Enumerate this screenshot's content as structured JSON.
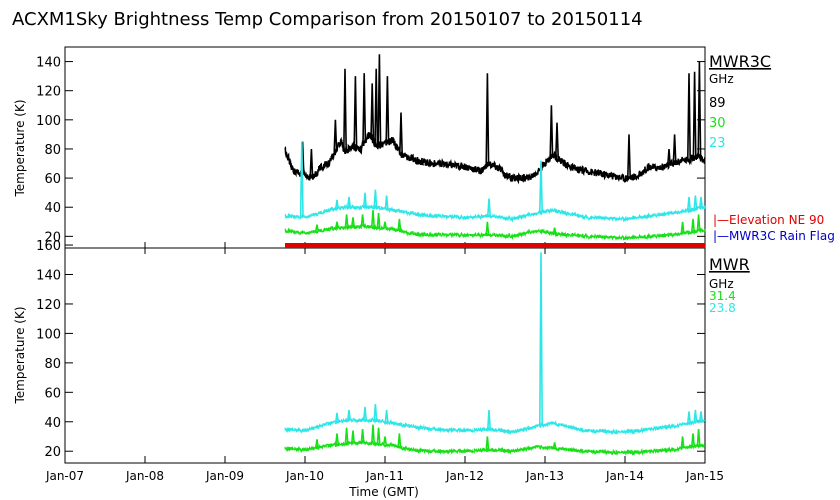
{
  "chart_data": {
    "type": "line",
    "title": "ACXM1Sky Brightness Temp Comparison from 20150107 to 20150114",
    "xlabel": "Time (GMT)",
    "x_ticks": [
      "Jan-07",
      "Jan-08",
      "Jan-09",
      "Jan-10",
      "Jan-11",
      "Jan-12",
      "Jan-13",
      "Jan-14",
      "Jan-15"
    ],
    "x_range_days": [
      0,
      8
    ],
    "colors": {
      "black": "#000000",
      "cyan": "#2ee6e6",
      "green": "#18e018",
      "red": "#e00000",
      "blue": "#0000c8"
    },
    "panels": [
      {
        "instrument": "MWR3C",
        "ylabel": "Temperature (K)",
        "ylim": [
          12,
          150
        ],
        "yticks": [
          "20",
          "40",
          "60",
          "80",
          "100",
          "120",
          "140"
        ],
        "legend_unit": "GHz",
        "legend_freqs": [
          "89",
          "30",
          "23"
        ],
        "flags": [
          "|—Elevation NE 90",
          "|—MWR3C Rain Flag"
        ],
        "series": [
          {
            "name": "89 GHz",
            "color": "black",
            "points": [
              [
                2.75,
                80
              ],
              [
                2.85,
                65
              ],
              [
                3.0,
                62
              ],
              [
                3.1,
                60
              ],
              [
                3.2,
                68
              ],
              [
                3.3,
                70
              ],
              [
                3.4,
                80
              ],
              [
                3.45,
                85
              ],
              [
                3.5,
                78
              ],
              [
                3.6,
                82
              ],
              [
                3.7,
                80
              ],
              [
                3.8,
                90
              ],
              [
                3.9,
                82
              ],
              [
                4.0,
                84
              ],
              [
                4.1,
                86
              ],
              [
                4.2,
                76
              ],
              [
                4.3,
                74
              ],
              [
                4.4,
                72
              ],
              [
                4.5,
                71
              ],
              [
                4.6,
                70
              ],
              [
                4.8,
                69
              ],
              [
                5.0,
                68
              ],
              [
                5.2,
                65
              ],
              [
                5.3,
                70
              ],
              [
                5.45,
                66
              ],
              [
                5.5,
                62
              ],
              [
                5.6,
                60
              ],
              [
                5.8,
                60
              ],
              [
                5.9,
                64
              ],
              [
                6.0,
                70
              ],
              [
                6.1,
                76
              ],
              [
                6.2,
                72
              ],
              [
                6.3,
                68
              ],
              [
                6.4,
                66
              ],
              [
                6.6,
                64
              ],
              [
                6.8,
                62
              ],
              [
                7.0,
                60
              ],
              [
                7.15,
                61
              ],
              [
                7.3,
                68
              ],
              [
                7.4,
                67
              ],
              [
                7.5,
                68
              ],
              [
                7.6,
                70
              ],
              [
                7.7,
                72
              ],
              [
                7.8,
                73
              ],
              [
                7.9,
                75
              ],
              [
                8.0,
                72
              ]
            ],
            "spikes": [
              [
                2.97,
                85
              ],
              [
                3.08,
                80
              ],
              [
                3.38,
                100
              ],
              [
                3.5,
                135
              ],
              [
                3.63,
                130
              ],
              [
                3.74,
                132
              ],
              [
                3.84,
                125
              ],
              [
                3.89,
                135
              ],
              [
                3.93,
                145
              ],
              [
                4.03,
                130
              ],
              [
                4.2,
                105
              ],
              [
                5.28,
                132
              ],
              [
                6.08,
                110
              ],
              [
                6.15,
                98
              ],
              [
                7.05,
                90
              ],
              [
                7.55,
                80
              ],
              [
                7.62,
                90
              ],
              [
                7.8,
                132
              ],
              [
                7.87,
                133
              ],
              [
                7.93,
                140
              ]
            ]
          },
          {
            "name": "30 GHz",
            "color": "green",
            "points": [
              [
                2.75,
                24
              ],
              [
                3.0,
                22
              ],
              [
                3.3,
                25
              ],
              [
                3.5,
                26
              ],
              [
                3.7,
                27
              ],
              [
                3.9,
                26
              ],
              [
                4.1,
                25
              ],
              [
                4.3,
                22
              ],
              [
                4.6,
                21
              ],
              [
                5.0,
                21
              ],
              [
                5.3,
                21
              ],
              [
                5.6,
                20
              ],
              [
                5.9,
                24
              ],
              [
                6.1,
                22
              ],
              [
                6.5,
                20
              ],
              [
                7.0,
                19
              ],
              [
                7.3,
                20
              ],
              [
                7.6,
                21
              ],
              [
                7.8,
                23
              ],
              [
                8.0,
                24
              ]
            ],
            "spikes": [
              [
                3.15,
                28
              ],
              [
                3.4,
                30
              ],
              [
                3.52,
                35
              ],
              [
                3.6,
                33
              ],
              [
                3.72,
                35
              ],
              [
                3.85,
                38
              ],
              [
                3.92,
                36
              ],
              [
                4.0,
                30
              ],
              [
                4.18,
                32
              ],
              [
                5.28,
                30
              ],
              [
                6.12,
                26
              ],
              [
                7.72,
                30
              ],
              [
                7.85,
                32
              ],
              [
                7.92,
                35
              ]
            ]
          },
          {
            "name": "23 GHz",
            "color": "cyan",
            "points": [
              [
                2.75,
                34
              ],
              [
                3.0,
                33
              ],
              [
                3.3,
                38
              ],
              [
                3.5,
                40
              ],
              [
                3.7,
                40
              ],
              [
                3.9,
                40
              ],
              [
                4.1,
                38
              ],
              [
                4.3,
                36
              ],
              [
                4.6,
                34
              ],
              [
                5.0,
                33
              ],
              [
                5.3,
                34
              ],
              [
                5.6,
                32
              ],
              [
                5.9,
                36
              ],
              [
                6.1,
                38
              ],
              [
                6.5,
                33
              ],
              [
                7.0,
                32
              ],
              [
                7.3,
                34
              ],
              [
                7.6,
                36
              ],
              [
                7.8,
                38
              ],
              [
                8.0,
                40
              ]
            ],
            "spikes": [
              [
                2.96,
                85
              ],
              [
                3.4,
                45
              ],
              [
                3.55,
                47
              ],
              [
                3.75,
                50
              ],
              [
                3.88,
                52
              ],
              [
                4.02,
                48
              ],
              [
                5.3,
                46
              ],
              [
                5.95,
                72
              ],
              [
                7.8,
                47
              ],
              [
                7.88,
                48
              ],
              [
                7.95,
                47
              ]
            ]
          }
        ]
      },
      {
        "instrument": "MWR",
        "ylabel": "Temperature (K)",
        "ylim": [
          12,
          158
        ],
        "yticks": [
          "20",
          "40",
          "60",
          "80",
          "100",
          "120",
          "140",
          "160"
        ],
        "legend_unit": "GHz",
        "legend_freqs": [
          "31.4",
          "23.8"
        ],
        "series": [
          {
            "name": "31.4 GHz",
            "color": "green",
            "points": [
              [
                2.75,
                22
              ],
              [
                3.0,
                21
              ],
              [
                3.3,
                24
              ],
              [
                3.5,
                25
              ],
              [
                3.7,
                26
              ],
              [
                3.9,
                25
              ],
              [
                4.1,
                24
              ],
              [
                4.3,
                21
              ],
              [
                4.6,
                20
              ],
              [
                5.0,
                20
              ],
              [
                5.3,
                21
              ],
              [
                5.6,
                20
              ],
              [
                5.9,
                23
              ],
              [
                6.1,
                22
              ],
              [
                6.5,
                20
              ],
              [
                7.0,
                19
              ],
              [
                7.3,
                20
              ],
              [
                7.6,
                21
              ],
              [
                7.8,
                23
              ],
              [
                8.0,
                24
              ]
            ],
            "spikes": [
              [
                3.15,
                28
              ],
              [
                3.4,
                32
              ],
              [
                3.52,
                36
              ],
              [
                3.6,
                34
              ],
              [
                3.72,
                35
              ],
              [
                3.85,
                38
              ],
              [
                3.92,
                36
              ],
              [
                4.0,
                30
              ],
              [
                4.18,
                32
              ],
              [
                5.28,
                30
              ],
              [
                6.12,
                26
              ],
              [
                7.72,
                30
              ],
              [
                7.85,
                32
              ],
              [
                7.92,
                35
              ]
            ]
          },
          {
            "name": "23.8 GHz",
            "color": "cyan",
            "points": [
              [
                2.75,
                35
              ],
              [
                3.0,
                34
              ],
              [
                3.3,
                39
              ],
              [
                3.5,
                41
              ],
              [
                3.7,
                41
              ],
              [
                3.9,
                41
              ],
              [
                4.1,
                39
              ],
              [
                4.3,
                37
              ],
              [
                4.6,
                35
              ],
              [
                5.0,
                34
              ],
              [
                5.3,
                35
              ],
              [
                5.6,
                33
              ],
              [
                5.9,
                37
              ],
              [
                6.1,
                39
              ],
              [
                6.5,
                34
              ],
              [
                7.0,
                33
              ],
              [
                7.3,
                35
              ],
              [
                7.6,
                37
              ],
              [
                7.8,
                39
              ],
              [
                8.0,
                41
              ]
            ],
            "spikes": [
              [
                3.4,
                46
              ],
              [
                3.55,
                48
              ],
              [
                3.75,
                50
              ],
              [
                3.88,
                52
              ],
              [
                4.02,
                48
              ],
              [
                5.3,
                48
              ],
              [
                5.95,
                155
              ],
              [
                7.8,
                47
              ],
              [
                7.88,
                48
              ],
              [
                7.95,
                47
              ]
            ]
          }
        ]
      }
    ]
  }
}
